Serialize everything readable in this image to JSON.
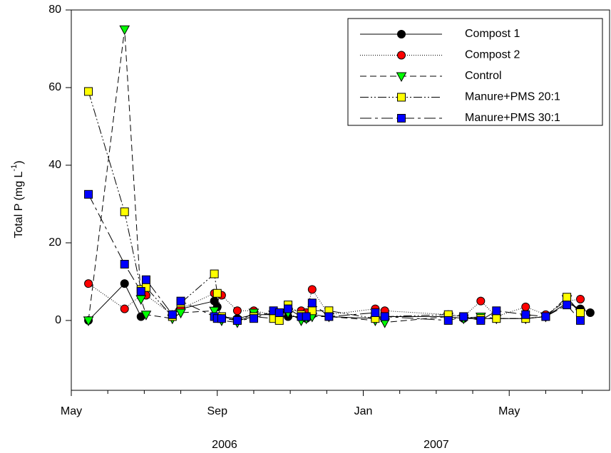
{
  "chart_data": {
    "type": "line",
    "ylabel": {
      "text": "Total P (mg L",
      "superscript": "-1",
      "suffix": ")"
    },
    "x": [
      5.47,
      6.46,
      6.91,
      7.05,
      7.77,
      8.0,
      8.92,
      9.0,
      9.12,
      9.55,
      10.0,
      10.54,
      10.7,
      10.94,
      11.3,
      11.44,
      11.6,
      12.06,
      13.33,
      13.59,
      15.33,
      15.75,
      16.22,
      16.65,
      17.45,
      18.0,
      18.58,
      18.95,
      19.22
    ],
    "xlim": [
      5,
      19.75
    ],
    "xticks": [
      {
        "value": 5,
        "label": "May"
      },
      {
        "value": 9,
        "label": "Sep"
      },
      {
        "value": 13,
        "label": "Jan"
      },
      {
        "value": 17,
        "label": "May"
      }
    ],
    "xminor_ticks": [
      6,
      7,
      8,
      10,
      11,
      12,
      14,
      15,
      16,
      18,
      19
    ],
    "xgroups": [
      {
        "value": 9.2,
        "label": "2006"
      },
      {
        "value": 15.0,
        "label": "2007"
      }
    ],
    "ylim": [
      -18,
      80
    ],
    "yticks": [
      0,
      20,
      40,
      60,
      80
    ],
    "legend": "upper right",
    "series": [
      {
        "name": "Compost 1",
        "color": "#000000",
        "marker": "circle",
        "dash": "none",
        "values": [
          0,
          9.5,
          1,
          null,
          1.5,
          3,
          5,
          3.5,
          1,
          0.5,
          1.5,
          1.5,
          1,
          1,
          1,
          0.5,
          1.5,
          1,
          0.5,
          1,
          1,
          0.5,
          0.5,
          0.5,
          0.5,
          1,
          4.5,
          3,
          2
        ]
      },
      {
        "name": "Compost 2",
        "color": "#ff0000",
        "marker": "circle",
        "dash": "1,2",
        "values": [
          9.5,
          3,
          6.5,
          6.5,
          1.5,
          3,
          7,
          null,
          6.5,
          2.5,
          2.5,
          1.5,
          1.5,
          2.5,
          2.5,
          2,
          8,
          1.5,
          3,
          2.5,
          1.5,
          1,
          5,
          1,
          3.5,
          1.5,
          5,
          5.5,
          null
        ]
      },
      {
        "name": "Control",
        "color": "#00ff00",
        "marker": "triangle-down",
        "dash": "9,5",
        "values": [
          0,
          75,
          5.5,
          1.5,
          0.5,
          2,
          2.5,
          1,
          0,
          -0.5,
          2,
          1.5,
          1.5,
          2,
          0,
          0.5,
          1,
          1,
          0,
          -0.5,
          1,
          0.5,
          1,
          0.5,
          0.5,
          1,
          5.5,
          2,
          null
        ]
      },
      {
        "name": "Manure+PMS 20:1",
        "color": "#ffff00",
        "marker": "square",
        "dash": "12,3,2,3,2,3",
        "values": [
          59,
          28,
          8,
          8.5,
          1,
          4.5,
          12,
          7,
          1,
          0,
          1,
          0.5,
          0,
          4,
          1.5,
          1,
          2.5,
          2.5,
          0.5,
          1,
          1.5,
          1,
          0.5,
          0.5,
          0.5,
          1,
          6,
          2,
          null
        ]
      },
      {
        "name": "Manure+PMS 30:1",
        "color": "#0000ff",
        "marker": "square",
        "dash": "16,5,4,5",
        "values": [
          32.5,
          14.5,
          7.5,
          10.5,
          1.5,
          5,
          1,
          0.5,
          0.5,
          0,
          0.5,
          2.5,
          2,
          3,
          1,
          1,
          4.5,
          1,
          2,
          1,
          0,
          1,
          0,
          2.5,
          1.5,
          1,
          4,
          0,
          null
        ]
      }
    ]
  }
}
